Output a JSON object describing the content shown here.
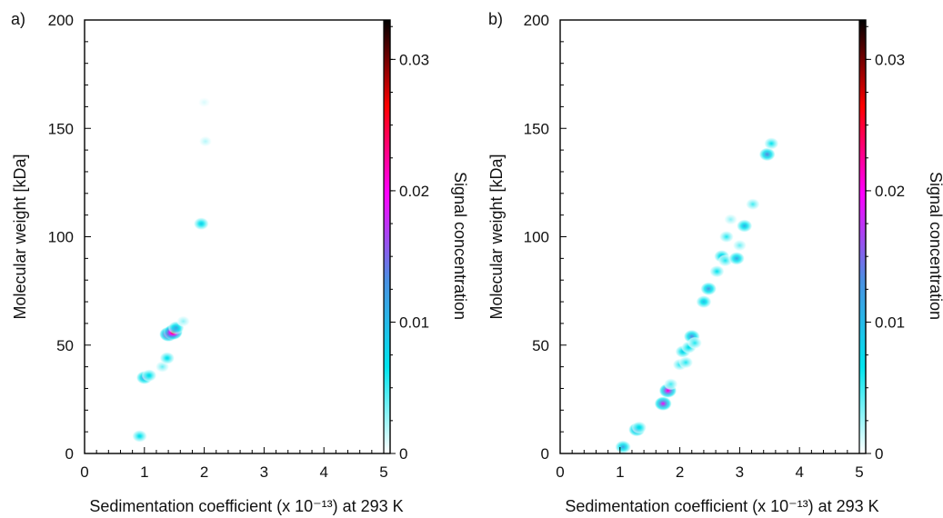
{
  "chart_data": [
    {
      "type": "heatmap",
      "panel_label": "a)",
      "xlabel": "Sedimentation coefficient (x 10⁻¹³) at 293 K",
      "ylabel": "Molecular weight [kDa]",
      "colorbar_label": "Signal concentration",
      "xlim": [
        0,
        5
      ],
      "ylim": [
        0,
        200
      ],
      "x_ticks": [
        "0",
        "1",
        "2",
        "3",
        "4",
        "5"
      ],
      "y_ticks": [
        "0",
        "50",
        "100",
        "150",
        "200"
      ],
      "colorbar_range": [
        0,
        0.033
      ],
      "colorbar_ticks": [
        "0",
        "0.01",
        "0.02",
        "0.03"
      ],
      "colorscale": [
        "#ffffff",
        "#00e5ee",
        "#4a90e2",
        "#ff00ff",
        "#ff0000",
        "#000000"
      ],
      "points": [
        {
          "x": 0.92,
          "y": 8,
          "c": 0.008
        },
        {
          "x": 1.0,
          "y": 35,
          "c": 0.014
        },
        {
          "x": 1.08,
          "y": 36,
          "c": 0.008
        },
        {
          "x": 1.3,
          "y": 40,
          "c": 0.004
        },
        {
          "x": 1.38,
          "y": 44,
          "c": 0.008
        },
        {
          "x": 1.4,
          "y": 55,
          "c": 0.024
        },
        {
          "x": 1.48,
          "y": 56,
          "c": 0.03
        },
        {
          "x": 1.53,
          "y": 58,
          "c": 0.012
        },
        {
          "x": 1.65,
          "y": 61,
          "c": 0.003
        },
        {
          "x": 1.95,
          "y": 106,
          "c": 0.009
        },
        {
          "x": 2.02,
          "y": 144,
          "c": 0.002
        },
        {
          "x": 2.0,
          "y": 162,
          "c": 0.001
        }
      ]
    },
    {
      "type": "heatmap",
      "panel_label": "b)",
      "xlabel": "Sedimentation coefficient (x 10⁻¹³) at 293 K",
      "ylabel": "Molecular weight [kDa]",
      "colorbar_label": "Signal concentration",
      "xlim": [
        0,
        5
      ],
      "ylim": [
        0,
        200
      ],
      "x_ticks": [
        "0",
        "1",
        "2",
        "3",
        "4",
        "5"
      ],
      "y_ticks": [
        "0",
        "50",
        "100",
        "150",
        "200"
      ],
      "colorbar_range": [
        0,
        0.033
      ],
      "colorbar_ticks": [
        "0",
        "0.01",
        "0.02",
        "0.03"
      ],
      "colorscale": [
        "#ffffff",
        "#00e5ee",
        "#4a90e2",
        "#ff00ff",
        "#ff0000",
        "#000000"
      ],
      "points": [
        {
          "x": 1.05,
          "y": 3,
          "c": 0.012
        },
        {
          "x": 1.28,
          "y": 11,
          "c": 0.016
        },
        {
          "x": 1.32,
          "y": 12,
          "c": 0.008
        },
        {
          "x": 1.72,
          "y": 23,
          "c": 0.02
        },
        {
          "x": 1.8,
          "y": 29,
          "c": 0.022
        },
        {
          "x": 1.85,
          "y": 32,
          "c": 0.005
        },
        {
          "x": 2.0,
          "y": 41,
          "c": 0.006
        },
        {
          "x": 2.05,
          "y": 47,
          "c": 0.009
        },
        {
          "x": 2.1,
          "y": 42,
          "c": 0.006
        },
        {
          "x": 2.15,
          "y": 49,
          "c": 0.008
        },
        {
          "x": 2.2,
          "y": 54,
          "c": 0.014
        },
        {
          "x": 2.25,
          "y": 51,
          "c": 0.006
        },
        {
          "x": 2.4,
          "y": 70,
          "c": 0.01
        },
        {
          "x": 2.48,
          "y": 76,
          "c": 0.013
        },
        {
          "x": 2.62,
          "y": 84,
          "c": 0.007
        },
        {
          "x": 2.7,
          "y": 91,
          "c": 0.01
        },
        {
          "x": 2.76,
          "y": 89,
          "c": 0.006
        },
        {
          "x": 2.78,
          "y": 100,
          "c": 0.006
        },
        {
          "x": 2.85,
          "y": 108,
          "c": 0.003
        },
        {
          "x": 2.95,
          "y": 90,
          "c": 0.012
        },
        {
          "x": 3.0,
          "y": 96,
          "c": 0.004
        },
        {
          "x": 3.08,
          "y": 105,
          "c": 0.011
        },
        {
          "x": 3.22,
          "y": 115,
          "c": 0.005
        },
        {
          "x": 3.46,
          "y": 138,
          "c": 0.014
        },
        {
          "x": 3.53,
          "y": 143,
          "c": 0.007
        }
      ]
    }
  ]
}
